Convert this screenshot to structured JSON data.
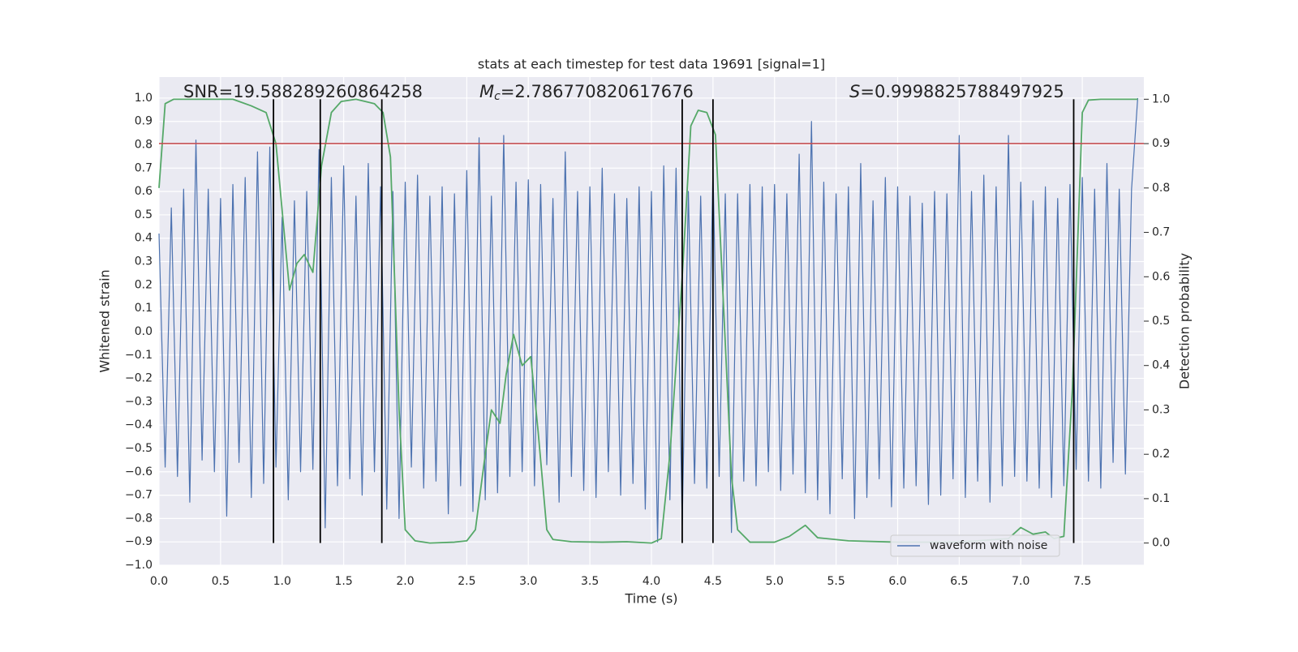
{
  "chart_data": {
    "type": "line",
    "title": "stats at each timestep for test data 19691 [signal=1]",
    "xlabel": "Time (s)",
    "ylabel": "Whitened strain",
    "y2label": "Detection probability",
    "annotations": [
      {
        "text": "SNR=19.588289260864258"
      },
      {
        "symbol": "M",
        "subscript": "c",
        "text": "=2.786770820617676"
      },
      {
        "symbol": "S",
        "text": "=0.9998825788497925"
      }
    ],
    "xlim": [
      0,
      8
    ],
    "xticks": [
      {
        "value": 0,
        "label": "0.0"
      },
      0.5,
      {
        "value": 1,
        "label": "1.0"
      },
      1.5,
      {
        "value": 2,
        "label": "2.0"
      },
      2.5,
      {
        "value": 3,
        "label": "3.0"
      },
      3.5,
      {
        "value": 4,
        "label": "4.0"
      },
      4.5,
      {
        "value": 5,
        "label": "5.0"
      },
      5.5,
      {
        "value": 6,
        "label": "6.0"
      },
      6.5,
      {
        "value": 7,
        "label": "7.0"
      },
      7.5
    ],
    "ylim": [
      -1.0,
      1.09
    ],
    "yticks": [
      {
        "value": -1,
        "label": "−1.0"
      },
      {
        "value": -0.9,
        "label": "−0.9"
      },
      {
        "value": -0.8,
        "label": "−0.8"
      },
      {
        "value": -0.7,
        "label": "−0.7"
      },
      {
        "value": -0.6,
        "label": "−0.6"
      },
      {
        "value": -0.5,
        "label": "−0.5"
      },
      {
        "value": -0.4,
        "label": "−0.4"
      },
      {
        "value": -0.3,
        "label": "−0.3"
      },
      {
        "value": -0.2,
        "label": "−0.2"
      },
      {
        "value": -0.1,
        "label": "−0.1"
      },
      {
        "value": 0,
        "label": "0.0"
      },
      0.1,
      0.2,
      0.3,
      0.4,
      0.5,
      0.6,
      0.7,
      0.8,
      0.9,
      {
        "value": 1,
        "label": "1.0"
      }
    ],
    "y2lim": [
      -0.05,
      1.05
    ],
    "y2ticks": [
      {
        "value": 0,
        "label": "0.0"
      },
      0.1,
      0.2,
      0.3,
      0.4,
      0.5,
      0.6,
      0.7,
      0.8,
      0.9,
      {
        "value": 1,
        "label": "1.0"
      }
    ],
    "grid": true,
    "legend": "lower right",
    "series": [
      {
        "name": "waveform with noise",
        "color": "#4c72b0",
        "x": [
          0,
          0.05,
          0.1,
          0.15,
          0.2,
          0.25,
          0.3,
          0.35,
          0.4,
          0.45,
          0.5,
          0.55,
          0.6,
          0.65,
          0.7,
          0.75,
          0.8,
          0.85,
          0.9,
          0.95,
          1,
          1.05,
          1.1,
          1.15,
          1.2,
          1.25,
          1.3,
          1.35,
          1.4,
          1.45,
          1.5,
          1.55,
          1.6,
          1.65,
          1.7,
          1.75,
          1.8,
          1.85,
          1.9,
          1.95,
          2,
          2.05,
          2.1,
          2.15,
          2.2,
          2.25,
          2.3,
          2.35,
          2.4,
          2.45,
          2.5,
          2.55,
          2.6,
          2.65,
          2.7,
          2.75,
          2.8,
          2.85,
          2.9,
          2.95,
          3,
          3.05,
          3.1,
          3.15,
          3.2,
          3.25,
          3.3,
          3.35,
          3.4,
          3.45,
          3.5,
          3.55,
          3.6,
          3.65,
          3.7,
          3.75,
          3.8,
          3.85,
          3.9,
          3.95,
          4,
          4.05,
          4.1,
          4.15,
          4.2,
          4.25,
          4.3,
          4.35,
          4.4,
          4.45,
          4.5,
          4.55,
          4.6,
          4.65,
          4.7,
          4.75,
          4.8,
          4.85,
          4.9,
          4.95,
          5,
          5.05,
          5.1,
          5.15,
          5.2,
          5.25,
          5.3,
          5.35,
          5.4,
          5.45,
          5.5,
          5.55,
          5.6,
          5.65,
          5.7,
          5.75,
          5.8,
          5.85,
          5.9,
          5.95,
          6,
          6.05,
          6.1,
          6.15,
          6.2,
          6.25,
          6.3,
          6.35,
          6.4,
          6.45,
          6.5,
          6.55,
          6.6,
          6.65,
          6.7,
          6.75,
          6.8,
          6.85,
          6.9,
          6.95,
          7,
          7.05,
          7.1,
          7.15,
          7.2,
          7.25,
          7.3,
          7.35,
          7.4,
          7.45,
          7.5,
          7.55,
          7.6,
          7.65,
          7.7,
          7.75,
          7.8,
          7.85,
          7.9,
          7.95
        ],
        "values": [
          0.42,
          -0.58,
          0.53,
          -0.62,
          0.61,
          -0.73,
          0.82,
          -0.55,
          0.61,
          -0.6,
          0.57,
          -0.79,
          0.63,
          -0.56,
          0.66,
          -0.71,
          0.77,
          -0.65,
          0.79,
          -0.58,
          0.49,
          -0.72,
          0.56,
          -0.6,
          0.6,
          -0.59,
          0.78,
          -0.84,
          0.66,
          -0.66,
          0.71,
          -0.63,
          0.58,
          -0.7,
          0.72,
          -0.6,
          0.62,
          -0.76,
          0.6,
          -0.8,
          0.64,
          -0.58,
          0.67,
          -0.67,
          0.58,
          -0.64,
          0.62,
          -0.78,
          0.59,
          -0.66,
          0.69,
          -0.77,
          0.83,
          -0.72,
          0.58,
          -0.69,
          0.84,
          -0.62,
          0.64,
          -0.6,
          0.65,
          -0.66,
          0.63,
          -0.57,
          0.57,
          -0.73,
          0.77,
          -0.62,
          0.6,
          -0.68,
          0.62,
          -0.71,
          0.7,
          -0.6,
          0.59,
          -0.7,
          0.57,
          -0.65,
          0.62,
          -0.76,
          0.6,
          -0.9,
          0.71,
          -0.72,
          0.7,
          -0.83,
          0.6,
          -0.65,
          0.58,
          -0.67,
          0.7,
          -0.62,
          0.59,
          -0.86,
          0.59,
          -0.64,
          0.63,
          -0.66,
          0.62,
          -0.6,
          0.63,
          -0.68,
          0.59,
          -0.61,
          0.76,
          -0.69,
          0.9,
          -0.72,
          0.64,
          -0.78,
          0.59,
          -0.63,
          0.62,
          -0.8,
          0.72,
          -0.71,
          0.56,
          -0.63,
          0.66,
          -0.75,
          0.62,
          -0.67,
          0.58,
          -0.66,
          0.55,
          -0.74,
          0.6,
          -0.7,
          0.59,
          -0.63,
          0.84,
          -0.71,
          0.6,
          -0.64,
          0.67,
          -0.73,
          0.62,
          -0.66,
          0.84,
          -0.62,
          0.64,
          -0.64,
          0.56,
          -0.67,
          0.62,
          -0.71,
          0.57,
          -0.66,
          0.63,
          -0.59,
          0.66,
          -0.64,
          0.61,
          -0.67,
          0.72,
          -0.56,
          0.61,
          -0.61,
          0.61,
          1.0
        ]
      },
      {
        "color": "#55a868",
        "axis": "y2",
        "x": [
          0,
          0.05,
          0.12,
          0.6,
          0.75,
          0.87,
          0.95,
          1,
          1.06,
          1.12,
          1.18,
          1.25,
          1.32,
          1.4,
          1.48,
          1.6,
          1.75,
          1.82,
          1.88,
          1.95,
          2,
          2.08,
          2.2,
          2.4,
          2.5,
          2.57,
          2.65,
          2.7,
          2.77,
          2.82,
          2.88,
          2.95,
          3.02,
          3.08,
          3.15,
          3.2,
          3.35,
          3.6,
          3.8,
          4,
          4.08,
          4.15,
          4.25,
          4.32,
          4.38,
          4.45,
          4.52,
          4.6,
          4.65,
          4.7,
          4.8,
          5,
          5.12,
          5.25,
          5.35,
          5.6,
          6,
          6.5,
          6.9,
          7,
          7.1,
          7.2,
          7.27,
          7.35,
          7.42,
          7.5,
          7.55,
          7.65,
          7.95
        ],
        "values": [
          0.8,
          0.99,
          1.0,
          1.0,
          0.985,
          0.97,
          0.9,
          0.75,
          0.57,
          0.63,
          0.65,
          0.61,
          0.85,
          0.97,
          0.995,
          1.0,
          0.99,
          0.97,
          0.87,
          0.3,
          0.03,
          0.005,
          0.0,
          0.002,
          0.005,
          0.03,
          0.2,
          0.3,
          0.27,
          0.38,
          0.47,
          0.4,
          0.42,
          0.25,
          0.03,
          0.008,
          0.003,
          0.002,
          0.003,
          0.0,
          0.01,
          0.2,
          0.6,
          0.94,
          0.975,
          0.97,
          0.92,
          0.45,
          0.15,
          0.03,
          0.002,
          0.002,
          0.015,
          0.04,
          0.012,
          0.005,
          0.002,
          0.002,
          0.01,
          0.035,
          0.02,
          0.025,
          0.01,
          0.015,
          0.35,
          0.97,
          0.998,
          1.0,
          1.0
        ]
      }
    ],
    "threshold": {
      "value": 0.9,
      "axis": "y2",
      "color": "#c44e52"
    },
    "vlines": {
      "x": [
        0.93,
        1.31,
        1.81,
        4.25,
        4.5,
        7.43
      ],
      "color": "#000000"
    }
  }
}
